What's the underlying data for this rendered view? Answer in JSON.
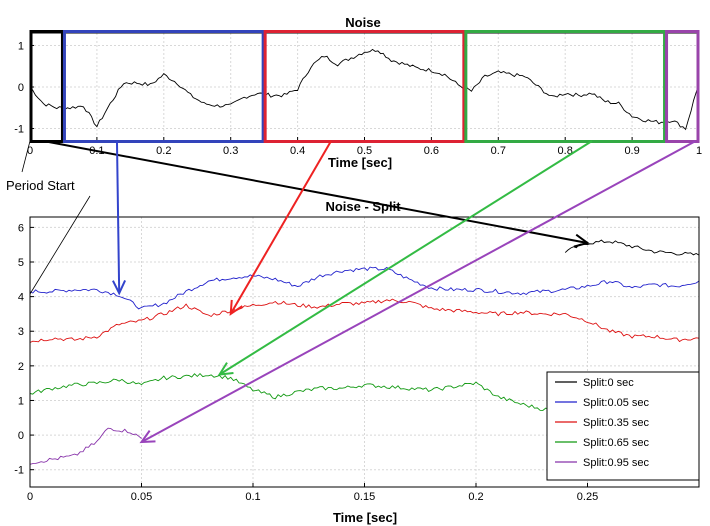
{
  "colors": {
    "black": "#000000",
    "blue": "#2222cc",
    "red": "#dd1111",
    "green": "#119911",
    "purple": "#8833aa",
    "box_black": "#000000",
    "box_blue": "#3344bb",
    "box_red": "#dd2233",
    "box_green": "#33aa44",
    "box_purple": "#9944aa",
    "arrow_black": "#000000",
    "arrow_blue": "#3344cc",
    "arrow_red": "#ee2222",
    "arrow_green": "#33bb44",
    "arrow_purple": "#9944bb"
  },
  "annotation": {
    "period_start": "Period Start"
  },
  "chart_data": [
    {
      "type": "line",
      "title": "Noise",
      "xlabel": "Time [sec]",
      "ylabel": "",
      "xlim": [
        0,
        1
      ],
      "ylim": [
        -1.3,
        1.3
      ],
      "xticks": [
        "0",
        "0.1",
        "0.2",
        "0.3",
        "0.4",
        "0.5",
        "0.6",
        "0.7",
        "0.8",
        "0.9",
        "1"
      ],
      "yticks": [
        "-1",
        "0",
        "1"
      ],
      "grid": true,
      "series": [
        {
          "color": "black",
          "x": [
            0,
            0.02,
            0.04,
            0.06,
            0.08,
            0.1,
            0.12,
            0.14,
            0.16,
            0.18,
            0.2,
            0.22,
            0.24,
            0.26,
            0.28,
            0.3,
            0.32,
            0.34,
            0.36,
            0.38,
            0.4,
            0.42,
            0.44,
            0.46,
            0.48,
            0.5,
            0.52,
            0.54,
            0.56,
            0.58,
            0.6,
            0.62,
            0.64,
            0.66,
            0.68,
            0.7,
            0.72,
            0.74,
            0.76,
            0.78,
            0.8,
            0.82,
            0.84,
            0.86,
            0.88,
            0.9,
            0.92,
            0.94,
            0.96,
            0.98,
            1.0
          ],
          "y": [
            0.0,
            -0.4,
            -0.5,
            -0.5,
            -0.45,
            -0.95,
            -0.4,
            0.1,
            0.1,
            0.05,
            0.3,
            0.1,
            -0.2,
            -0.4,
            -0.45,
            -0.45,
            -0.25,
            -0.15,
            -0.2,
            -0.2,
            -0.05,
            0.5,
            0.75,
            0.55,
            0.7,
            0.85,
            0.9,
            0.65,
            0.55,
            0.45,
            0.4,
            0.3,
            0.05,
            -0.1,
            0.25,
            0.35,
            0.3,
            0.25,
            0.0,
            -0.25,
            -0.15,
            -0.2,
            -0.15,
            -0.35,
            -0.4,
            -0.7,
            -0.8,
            -0.85,
            -0.8,
            -1.0,
            0.1
          ]
        }
      ]
    },
    {
      "type": "line",
      "title": "Noise - Split",
      "xlabel": "Time [sec]",
      "ylabel": "",
      "xlim": [
        0,
        0.3
      ],
      "ylim": [
        -1.5,
        6.3
      ],
      "xticks": [
        "0",
        "0.05",
        "0.1",
        "0.15",
        "0.2",
        "0.25"
      ],
      "yticks": [
        "-1",
        "0",
        "1",
        "2",
        "3",
        "4",
        "5",
        "6"
      ],
      "grid": true,
      "legend": "bottom-right",
      "series": [
        {
          "name": "Split:0 sec",
          "color": "black",
          "x": [
            0.24,
            0.25,
            0.26,
            0.27,
            0.28,
            0.29,
            0.3
          ],
          "y": [
            5.3,
            5.55,
            5.6,
            5.45,
            5.3,
            5.25,
            5.2
          ]
        },
        {
          "name": "Split:0.05 sec",
          "color": "blue",
          "x": [
            0,
            0.01,
            0.02,
            0.03,
            0.04,
            0.05,
            0.06,
            0.07,
            0.08,
            0.09,
            0.1,
            0.11,
            0.12,
            0.13,
            0.14,
            0.15,
            0.16,
            0.17,
            0.18,
            0.19,
            0.2,
            0.21,
            0.22,
            0.23,
            0.24,
            0.25,
            0.26,
            0.27,
            0.28,
            0.29,
            0.3
          ],
          "y": [
            4.15,
            4.15,
            4.2,
            4.2,
            4.05,
            3.65,
            3.8,
            4.15,
            4.45,
            4.55,
            4.6,
            4.5,
            4.3,
            4.6,
            4.75,
            4.8,
            4.8,
            4.5,
            4.25,
            4.2,
            4.2,
            4.15,
            4.1,
            4.15,
            4.2,
            4.3,
            4.45,
            4.25,
            4.35,
            4.3,
            4.45
          ]
        },
        {
          "name": "Split:0.35 sec",
          "color": "red",
          "x": [
            0,
            0.01,
            0.02,
            0.03,
            0.04,
            0.05,
            0.06,
            0.07,
            0.08,
            0.09,
            0.1,
            0.11,
            0.12,
            0.13,
            0.14,
            0.15,
            0.16,
            0.17,
            0.18,
            0.19,
            0.2,
            0.21,
            0.22,
            0.23,
            0.24,
            0.25,
            0.26,
            0.27,
            0.28,
            0.29,
            0.3
          ],
          "y": [
            2.7,
            2.8,
            2.75,
            2.85,
            3.2,
            3.3,
            3.5,
            3.75,
            3.45,
            3.6,
            3.75,
            3.85,
            3.75,
            3.7,
            3.8,
            3.8,
            3.9,
            3.85,
            3.65,
            3.6,
            3.55,
            3.5,
            3.55,
            3.5,
            3.5,
            3.3,
            3.0,
            2.85,
            2.85,
            2.75,
            2.8
          ]
        },
        {
          "name": "Split:0.65 sec",
          "color": "green",
          "x": [
            0,
            0.01,
            0.02,
            0.03,
            0.04,
            0.05,
            0.06,
            0.07,
            0.08,
            0.09,
            0.1,
            0.11,
            0.12,
            0.13,
            0.14,
            0.15,
            0.16,
            0.17,
            0.18,
            0.19,
            0.2,
            0.21,
            0.22,
            0.23,
            0.24,
            0.25
          ],
          "y": [
            1.2,
            1.35,
            1.45,
            1.5,
            1.6,
            1.45,
            1.65,
            1.7,
            1.75,
            1.65,
            1.3,
            1.1,
            1.25,
            1.35,
            1.35,
            1.45,
            1.4,
            1.35,
            1.3,
            1.4,
            1.5,
            1.1,
            0.9,
            0.75,
            0.7,
            0.6
          ]
        },
        {
          "name": "Split:0.95 sec",
          "color": "purple",
          "x": [
            0,
            0.01,
            0.02,
            0.03,
            0.035,
            0.04,
            0.045,
            0.05
          ],
          "y": [
            -0.8,
            -0.7,
            -0.6,
            -0.2,
            0.2,
            0.15,
            0.1,
            -0.1
          ]
        }
      ]
    }
  ]
}
